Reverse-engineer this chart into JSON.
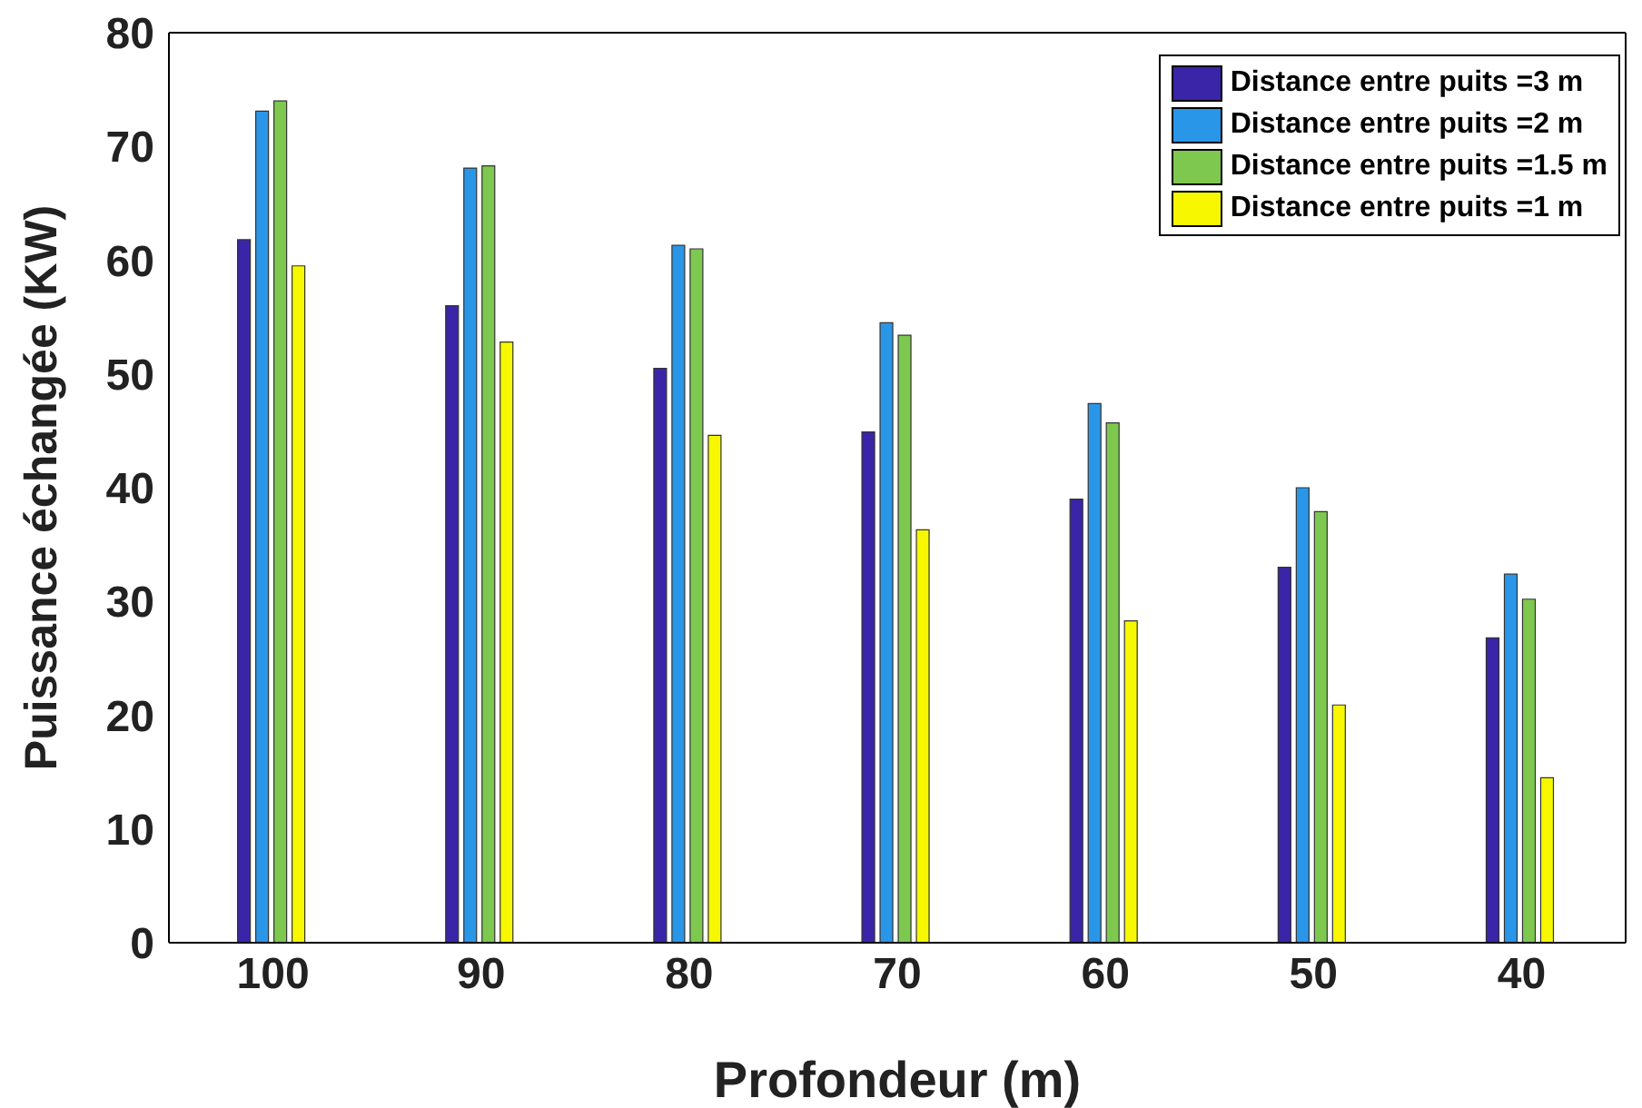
{
  "chart_data": {
    "type": "bar",
    "xlabel": "Profondeur (m)",
    "ylabel": "Puissance échangée (KW)",
    "categories": [
      "100",
      "90",
      "80",
      "70",
      "60",
      "50",
      "40"
    ],
    "series": [
      {
        "name": "Distance entre puits =3 m",
        "color": "#3a25a8",
        "values": [
          61.8,
          56.0,
          50.5,
          44.9,
          39.0,
          33.0,
          26.8
        ]
      },
      {
        "name": "Distance entre puits =2 m",
        "color": "#2a96e8",
        "values": [
          73.1,
          68.1,
          61.3,
          54.5,
          47.4,
          40.0,
          32.4
        ]
      },
      {
        "name": "Distance entre puits =1.5 m",
        "color": "#7ec850",
        "values": [
          74.0,
          68.3,
          61.0,
          53.4,
          45.7,
          37.9,
          30.2
        ]
      },
      {
        "name": "Distance entre puits =1 m",
        "color": "#f7f700",
        "values": [
          59.5,
          52.8,
          44.6,
          36.3,
          28.3,
          20.9,
          14.5
        ]
      }
    ],
    "ylim": [
      0,
      80
    ],
    "yticks": [
      0,
      10,
      20,
      30,
      40,
      50,
      60,
      70,
      80
    ],
    "grid": false,
    "legend": "top right"
  }
}
